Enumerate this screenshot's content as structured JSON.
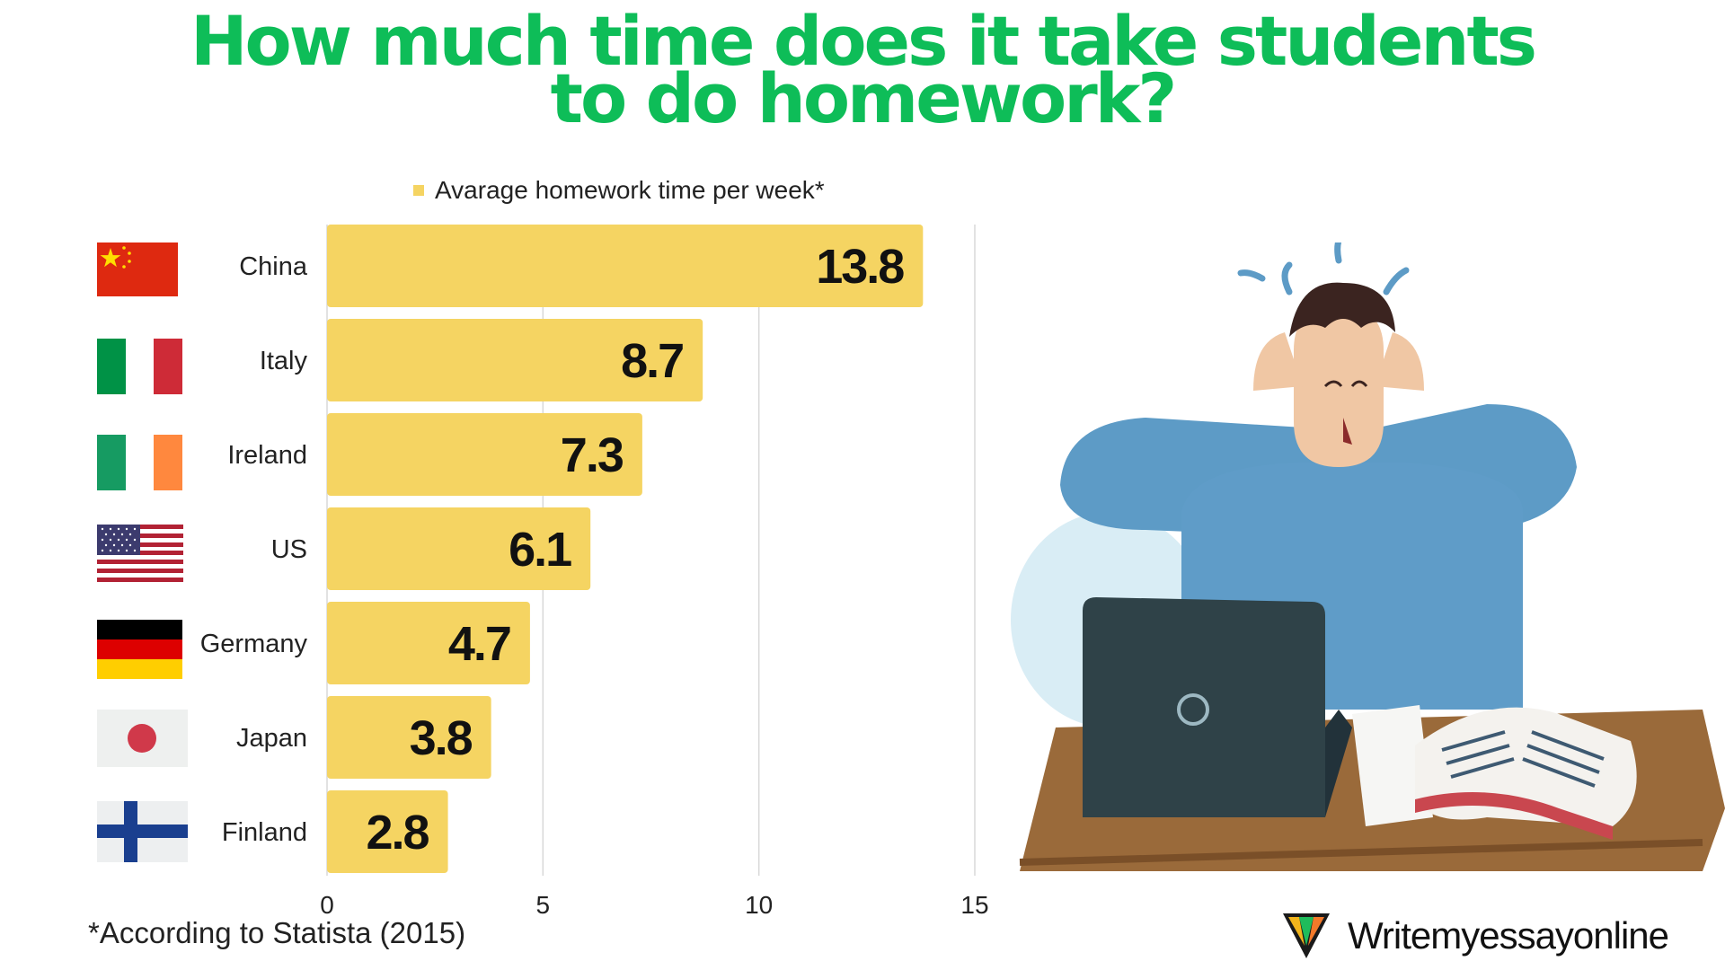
{
  "title_line1": "How much time does it take students",
  "title_line2": "to do homework?",
  "footnote": "*According to Statista (2015)",
  "brand": {
    "name": "Writemyessayonline"
  },
  "colors": {
    "title": "#0ebd58",
    "bar": "#f5d462",
    "grid": "#d8d8d8",
    "text": "#222222"
  },
  "chart_data": {
    "type": "bar",
    "orientation": "horizontal",
    "legend": "Avarage homework time per week*",
    "legend_position": "top",
    "categories": [
      "China",
      "Italy",
      "Ireland",
      "US",
      "Germany",
      "Japan",
      "Finland"
    ],
    "values": [
      13.8,
      8.7,
      7.3,
      6.1,
      4.7,
      3.8,
      2.8
    ],
    "value_labels": [
      "13.8",
      "8.7",
      "7.3",
      "6.1",
      "4.7",
      "3.8",
      "2.8"
    ],
    "xlim": [
      0,
      15
    ],
    "xticks": [
      0,
      5,
      10,
      15
    ],
    "xtick_labels": [
      "0",
      "5",
      "10",
      "15"
    ],
    "grid": true
  },
  "flags": [
    {
      "country": "China",
      "icon": "china-flag-icon"
    },
    {
      "country": "Italy",
      "icon": "italy-flag-icon"
    },
    {
      "country": "Ireland",
      "icon": "ireland-flag-icon"
    },
    {
      "country": "US",
      "icon": "us-flag-icon"
    },
    {
      "country": "Germany",
      "icon": "germany-flag-icon"
    },
    {
      "country": "Japan",
      "icon": "japan-flag-icon"
    },
    {
      "country": "Finland",
      "icon": "finland-flag-icon"
    }
  ],
  "illustration": {
    "icon": "stressed-student-with-laptop-icon"
  }
}
